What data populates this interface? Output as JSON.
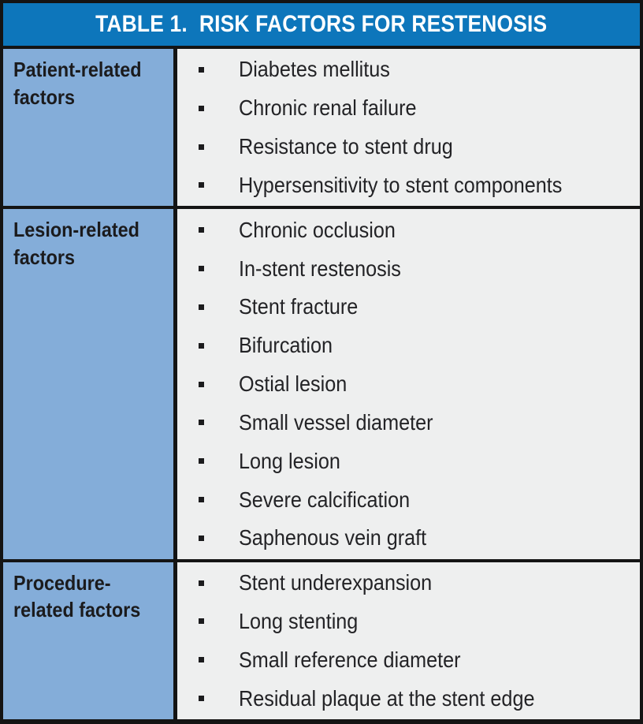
{
  "table": {
    "title": "TABLE 1.  RISK FACTORS FOR RESTENOSIS",
    "colors": {
      "header_blue": "#0d76bb",
      "left_column_blue": "#84add9",
      "items_background_gray": "#eeefef",
      "border_black": "#141414",
      "title_text": "#ffffff",
      "body_text": "#1b1b1d"
    },
    "sections": [
      {
        "label": "Patient-related factors",
        "label_lines": [
          "Patient-related",
          "factors"
        ],
        "items": [
          "Diabetes mellitus",
          "Chronic renal failure",
          "Resistance to stent drug",
          "Hypersensitivity to stent components"
        ]
      },
      {
        "label": "Lesion-related factors",
        "label_lines": [
          "Lesion-related",
          "factors"
        ],
        "items": [
          "Chronic occlusion",
          "In-stent restenosis",
          "Stent fracture",
          "Bifurcation",
          "Ostial lesion",
          "Small vessel diameter",
          "Long lesion",
          "Severe calcification",
          "Saphenous vein graft"
        ]
      },
      {
        "label": "Procedure-related factors",
        "label_lines": [
          "Procedure-",
          "related factors"
        ],
        "items": [
          "Stent underexpansion",
          "Long stenting",
          "Small reference diameter",
          "Residual plaque at the stent edge"
        ]
      }
    ]
  }
}
